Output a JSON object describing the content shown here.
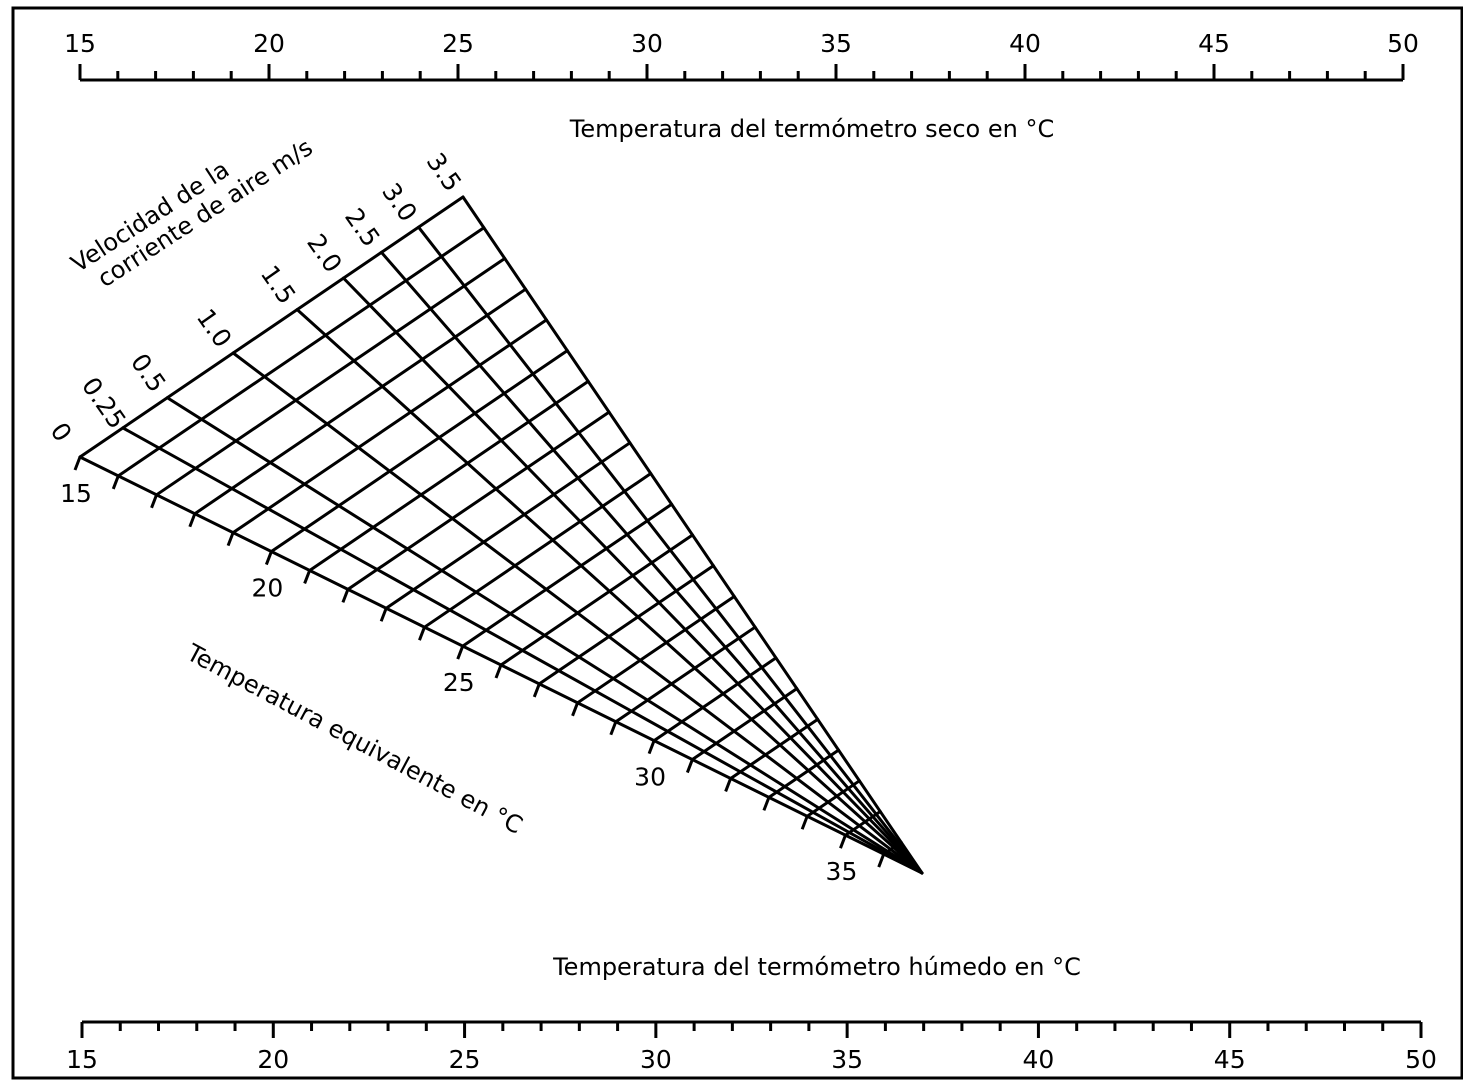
{
  "chart_data": {
    "type": "nomogram",
    "top_scale": {
      "label": "Temperatura del termómetro seco en °C",
      "range": [
        15,
        50
      ],
      "major_ticks": [
        15,
        20,
        25,
        30,
        35,
        40,
        45,
        50
      ],
      "minor_step": 1
    },
    "bottom_scale": {
      "label": "Temperatura del termómetro húmedo en °C",
      "range": [
        15,
        50
      ],
      "major_ticks": [
        15,
        20,
        25,
        30,
        35,
        40,
        45,
        50
      ],
      "minor_step": 1
    },
    "velocity_scale": {
      "label_line1": "Velocidad de la",
      "label_line2": "corriente de aire m/s",
      "values": [
        0,
        0.25,
        0.5,
        1.0,
        1.5,
        2.0,
        2.5,
        3.0,
        3.5
      ],
      "labels": [
        "0",
        "0.25",
        "0.5",
        "1.0",
        "1.5",
        "2.0",
        "2.5",
        "3.0",
        "3.5"
      ]
    },
    "equivalent_scale": {
      "label": "Temperatura equivalente en °C",
      "range": [
        15,
        37
      ],
      "major_ticks": [
        15,
        20,
        25,
        30,
        35
      ],
      "minor_step": 1
    }
  }
}
